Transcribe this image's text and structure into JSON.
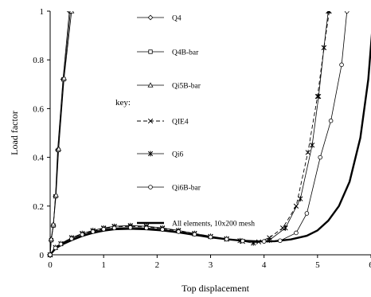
{
  "chart_data": {
    "type": "line",
    "title": "",
    "xlabel": "Top displacement",
    "ylabel": "Load factor",
    "xlim": [
      0,
      6
    ],
    "ylim": [
      0,
      1
    ],
    "xticks": [
      "0",
      "1",
      "2",
      "3",
      "4",
      "5",
      "6"
    ],
    "yticks": [
      "0",
      "0.2",
      "0.4",
      "0.6",
      "0.8",
      "1"
    ],
    "grid": false,
    "legend_title": "key:",
    "legend_position": "top-middle",
    "series": [
      {
        "name": "Q4",
        "marker": "diamond",
        "dash": "solid",
        "stroke_width": 0.8,
        "points": [
          [
            0,
            0
          ],
          [
            0.02,
            0.06
          ],
          [
            0.06,
            0.12
          ],
          [
            0.1,
            0.24
          ],
          [
            0.14,
            0.43
          ],
          [
            0.24,
            0.72
          ],
          [
            0.36,
            1.0
          ]
        ]
      },
      {
        "name": "Q4B-bar",
        "marker": "square",
        "dash": "solid",
        "stroke_width": 0.8,
        "points": [
          [
            0,
            0
          ],
          [
            0.02,
            0.06
          ],
          [
            0.06,
            0.12
          ],
          [
            0.1,
            0.24
          ],
          [
            0.15,
            0.43
          ],
          [
            0.25,
            0.72
          ],
          [
            0.38,
            1.0
          ]
        ]
      },
      {
        "name": "Qi5B-bar",
        "marker": "triangle",
        "dash": "solid",
        "stroke_width": 0.8,
        "points": [
          [
            0,
            0
          ],
          [
            0.02,
            0.065
          ],
          [
            0.06,
            0.125
          ],
          [
            0.11,
            0.245
          ],
          [
            0.16,
            0.435
          ],
          [
            0.26,
            0.725
          ],
          [
            0.4,
            1.0
          ]
        ]
      },
      {
        "name": "QIE4",
        "marker": "x",
        "dash": "dashed",
        "stroke_width": 0.9,
        "points": [
          [
            0,
            0
          ],
          [
            0.1,
            0.03
          ],
          [
            0.2,
            0.045
          ],
          [
            0.4,
            0.07
          ],
          [
            0.6,
            0.085
          ],
          [
            0.8,
            0.097
          ],
          [
            1.0,
            0.108
          ],
          [
            1.2,
            0.115
          ],
          [
            1.5,
            0.117
          ],
          [
            1.8,
            0.114
          ],
          [
            2.1,
            0.108
          ],
          [
            2.4,
            0.098
          ],
          [
            2.7,
            0.086
          ],
          [
            3.0,
            0.074
          ],
          [
            3.3,
            0.064
          ],
          [
            3.6,
            0.055
          ],
          [
            3.9,
            0.053
          ],
          [
            4.1,
            0.07
          ],
          [
            4.35,
            0.11
          ],
          [
            4.6,
            0.2
          ],
          [
            4.82,
            0.42
          ],
          [
            5.0,
            0.65
          ],
          [
            5.12,
            0.85
          ],
          [
            5.22,
            1.0
          ]
        ]
      },
      {
        "name": "Qi6",
        "marker": "asterisk",
        "dash": "solid",
        "stroke_width": 0.8,
        "points": [
          [
            0,
            0
          ],
          [
            0.1,
            0.03
          ],
          [
            0.2,
            0.046
          ],
          [
            0.4,
            0.07
          ],
          [
            0.6,
            0.088
          ],
          [
            0.8,
            0.1
          ],
          [
            1.0,
            0.11
          ],
          [
            1.2,
            0.117
          ],
          [
            1.5,
            0.12
          ],
          [
            1.8,
            0.117
          ],
          [
            2.1,
            0.11
          ],
          [
            2.4,
            0.1
          ],
          [
            2.7,
            0.088
          ],
          [
            3.0,
            0.076
          ],
          [
            3.3,
            0.066
          ],
          [
            3.55,
            0.058
          ],
          [
            3.8,
            0.048
          ],
          [
            4.1,
            0.06
          ],
          [
            4.4,
            0.11
          ],
          [
            4.68,
            0.23
          ],
          [
            4.9,
            0.45
          ],
          [
            5.02,
            0.65
          ],
          [
            5.12,
            0.85
          ],
          [
            5.2,
            1.0
          ]
        ]
      },
      {
        "name": "Qi6B-bar",
        "marker": "circle",
        "dash": "solid",
        "stroke_width": 0.8,
        "points": [
          [
            0,
            0
          ],
          [
            0.1,
            0.028
          ],
          [
            0.2,
            0.044
          ],
          [
            0.4,
            0.066
          ],
          [
            0.6,
            0.083
          ],
          [
            0.8,
            0.095
          ],
          [
            1.0,
            0.105
          ],
          [
            1.2,
            0.11
          ],
          [
            1.5,
            0.112
          ],
          [
            1.8,
            0.11
          ],
          [
            2.1,
            0.104
          ],
          [
            2.4,
            0.095
          ],
          [
            2.7,
            0.084
          ],
          [
            3.0,
            0.073
          ],
          [
            3.3,
            0.064
          ],
          [
            3.6,
            0.057
          ],
          [
            4.0,
            0.055
          ],
          [
            4.3,
            0.058
          ],
          [
            4.6,
            0.09
          ],
          [
            4.8,
            0.17
          ],
          [
            5.05,
            0.4
          ],
          [
            5.25,
            0.55
          ],
          [
            5.45,
            0.78
          ],
          [
            5.55,
            1.0
          ]
        ]
      },
      {
        "name": "All elements, 10x200 mesh",
        "marker": "none",
        "dash": "solid",
        "stroke_width": 2.4,
        "points": [
          [
            0,
            0
          ],
          [
            0.1,
            0.026
          ],
          [
            0.2,
            0.04
          ],
          [
            0.4,
            0.06
          ],
          [
            0.6,
            0.077
          ],
          [
            0.8,
            0.09
          ],
          [
            1.0,
            0.099
          ],
          [
            1.2,
            0.105
          ],
          [
            1.5,
            0.107
          ],
          [
            1.8,
            0.105
          ],
          [
            2.1,
            0.1
          ],
          [
            2.4,
            0.092
          ],
          [
            2.7,
            0.082
          ],
          [
            3.0,
            0.072
          ],
          [
            3.3,
            0.064
          ],
          [
            3.6,
            0.058
          ],
          [
            3.9,
            0.055
          ],
          [
            4.2,
            0.056
          ],
          [
            4.5,
            0.063
          ],
          [
            4.8,
            0.078
          ],
          [
            5.0,
            0.1
          ],
          [
            5.2,
            0.14
          ],
          [
            5.4,
            0.2
          ],
          [
            5.6,
            0.3
          ],
          [
            5.8,
            0.48
          ],
          [
            5.95,
            0.72
          ],
          [
            6.05,
            1.0
          ]
        ]
      }
    ]
  }
}
